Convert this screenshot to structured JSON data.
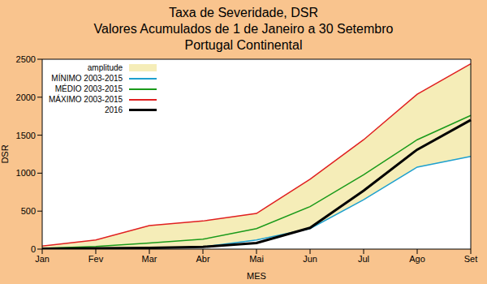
{
  "chart_data": {
    "type": "line",
    "title": "Taxa de Severidade, DSR",
    "subtitle": [
      "Valores Acumulados de 1 de Janeiro a 30 Setembro",
      "Portugal Continental"
    ],
    "x_label": "MES",
    "y_label": "DSR",
    "categories": [
      "Jan",
      "Fev",
      "Mar",
      "Abr",
      "Mai",
      "Jun",
      "Jul",
      "Ago",
      "Set"
    ],
    "series": [
      {
        "name": "amplitude",
        "type": "area",
        "color": "#f5edb8",
        "values": [
          [
            0,
            40
          ],
          [
            5,
            120
          ],
          [
            10,
            310
          ],
          [
            30,
            370
          ],
          [
            120,
            470
          ],
          [
            270,
            920
          ],
          [
            650,
            1440
          ],
          [
            1080,
            2040
          ],
          [
            1220,
            2440
          ]
        ]
      },
      {
        "name": "MÍNIMO 2003-2015",
        "type": "line",
        "color": "#1ea0cf",
        "values": [
          0,
          5,
          10,
          30,
          120,
          270,
          650,
          1080,
          1220
        ]
      },
      {
        "name": "MÉDIO 2003-2015",
        "type": "line",
        "color": "#1a9a1a",
        "values": [
          10,
          35,
          80,
          130,
          270,
          560,
          980,
          1440,
          1760
        ]
      },
      {
        "name": "MÁXIMO 2003-2015",
        "type": "line",
        "color": "#e02020",
        "values": [
          40,
          120,
          310,
          370,
          470,
          920,
          1440,
          2040,
          2440
        ]
      },
      {
        "name": "2016",
        "type": "line",
        "color": "#000000",
        "values": [
          5,
          10,
          15,
          30,
          80,
          280,
          770,
          1310,
          1700
        ]
      }
    ],
    "ylim": [
      0,
      2500
    ],
    "yticks": [
      0,
      500,
      1000,
      1500,
      2000,
      2500
    ],
    "grid": false,
    "legend": "upper left"
  }
}
